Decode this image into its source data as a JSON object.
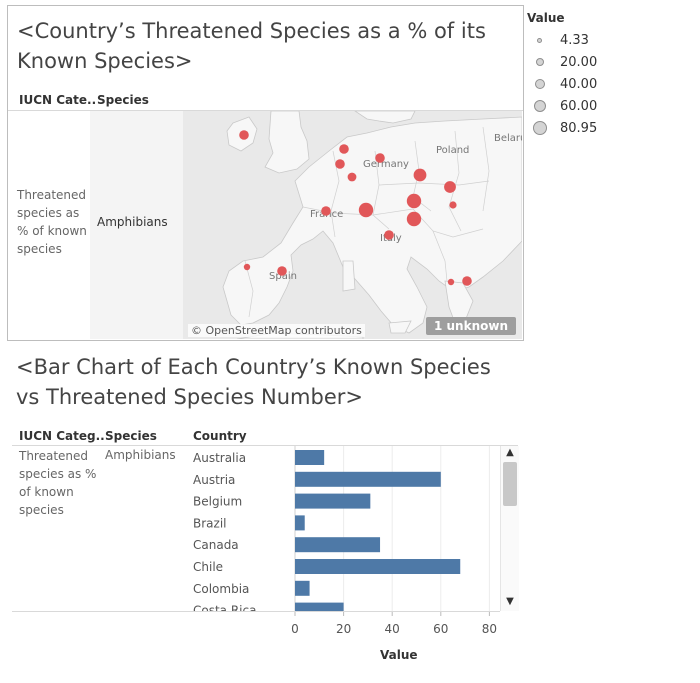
{
  "map": {
    "title": "<Country’s Threatened Species as a % of its Known Species>",
    "headers": {
      "category": "IUCN Cate..",
      "species": "Species"
    },
    "category_value": "Threatened species as % of known species",
    "species_value": "Amphibians",
    "credit": "© OpenStreetMap contributors",
    "unknown_badge": "1 unknown",
    "country_labels": [
      "Germany",
      "France",
      "Italy",
      "Spain",
      "Poland",
      "Belaru"
    ],
    "marker_color": "#e15759",
    "land_color": "#f7f7f7",
    "sea_color": "#e9e9e9"
  },
  "legend": {
    "title": "Value",
    "items": [
      "4.33",
      "20.00",
      "40.00",
      "60.00",
      "80.95"
    ]
  },
  "bar": {
    "title": "<Bar Chart of Each Country’s Known Species vs Threatened Species Number>",
    "headers": {
      "category": "IUCN Categ..",
      "species": "Species",
      "country": "Country"
    },
    "category_value": "Threatened species as % of known species",
    "species_value": "Amphibians"
  },
  "chart_data": [
    {
      "type": "scatter",
      "title": "<Country’s Threatened Species as a % of its Known Species>",
      "size_legend": "Value",
      "legend_values": [
        4.33,
        20.0,
        40.0,
        60.0,
        80.95
      ],
      "points": [
        {
          "label": "",
          "value": 20
        },
        {
          "label": "",
          "value": 20
        },
        {
          "label": "",
          "value": 20
        },
        {
          "label": "",
          "value": 15
        },
        {
          "label": "Germany",
          "value": 20
        },
        {
          "label": "",
          "value": 45
        },
        {
          "label": "",
          "value": 35
        },
        {
          "label": "",
          "value": 8
        },
        {
          "label": "France",
          "value": 20
        },
        {
          "label": "",
          "value": 60
        },
        {
          "label": "",
          "value": 60
        },
        {
          "label": "",
          "value": 60
        },
        {
          "label": "",
          "value": 5
        },
        {
          "label": "Italy",
          "value": 20
        },
        {
          "label": "",
          "value": 5
        },
        {
          "label": "Spain",
          "value": 20
        },
        {
          "label": "",
          "value": 20
        }
      ]
    },
    {
      "type": "bar",
      "title": "<Bar Chart of Each Country’s Known Species vs Threatened Species Number>",
      "categories": [
        "Australia",
        "Austria",
        "Belgium",
        "Brazil",
        "Canada",
        "Chile",
        "Colombia",
        "Costa Rica"
      ],
      "values": [
        12,
        60,
        31,
        4,
        35,
        68,
        6,
        20
      ],
      "xlabel": "Value",
      "xlim": [
        0,
        85
      ],
      "ticks": [
        0,
        20,
        40,
        60,
        80
      ],
      "color": "#4e79a7"
    }
  ]
}
